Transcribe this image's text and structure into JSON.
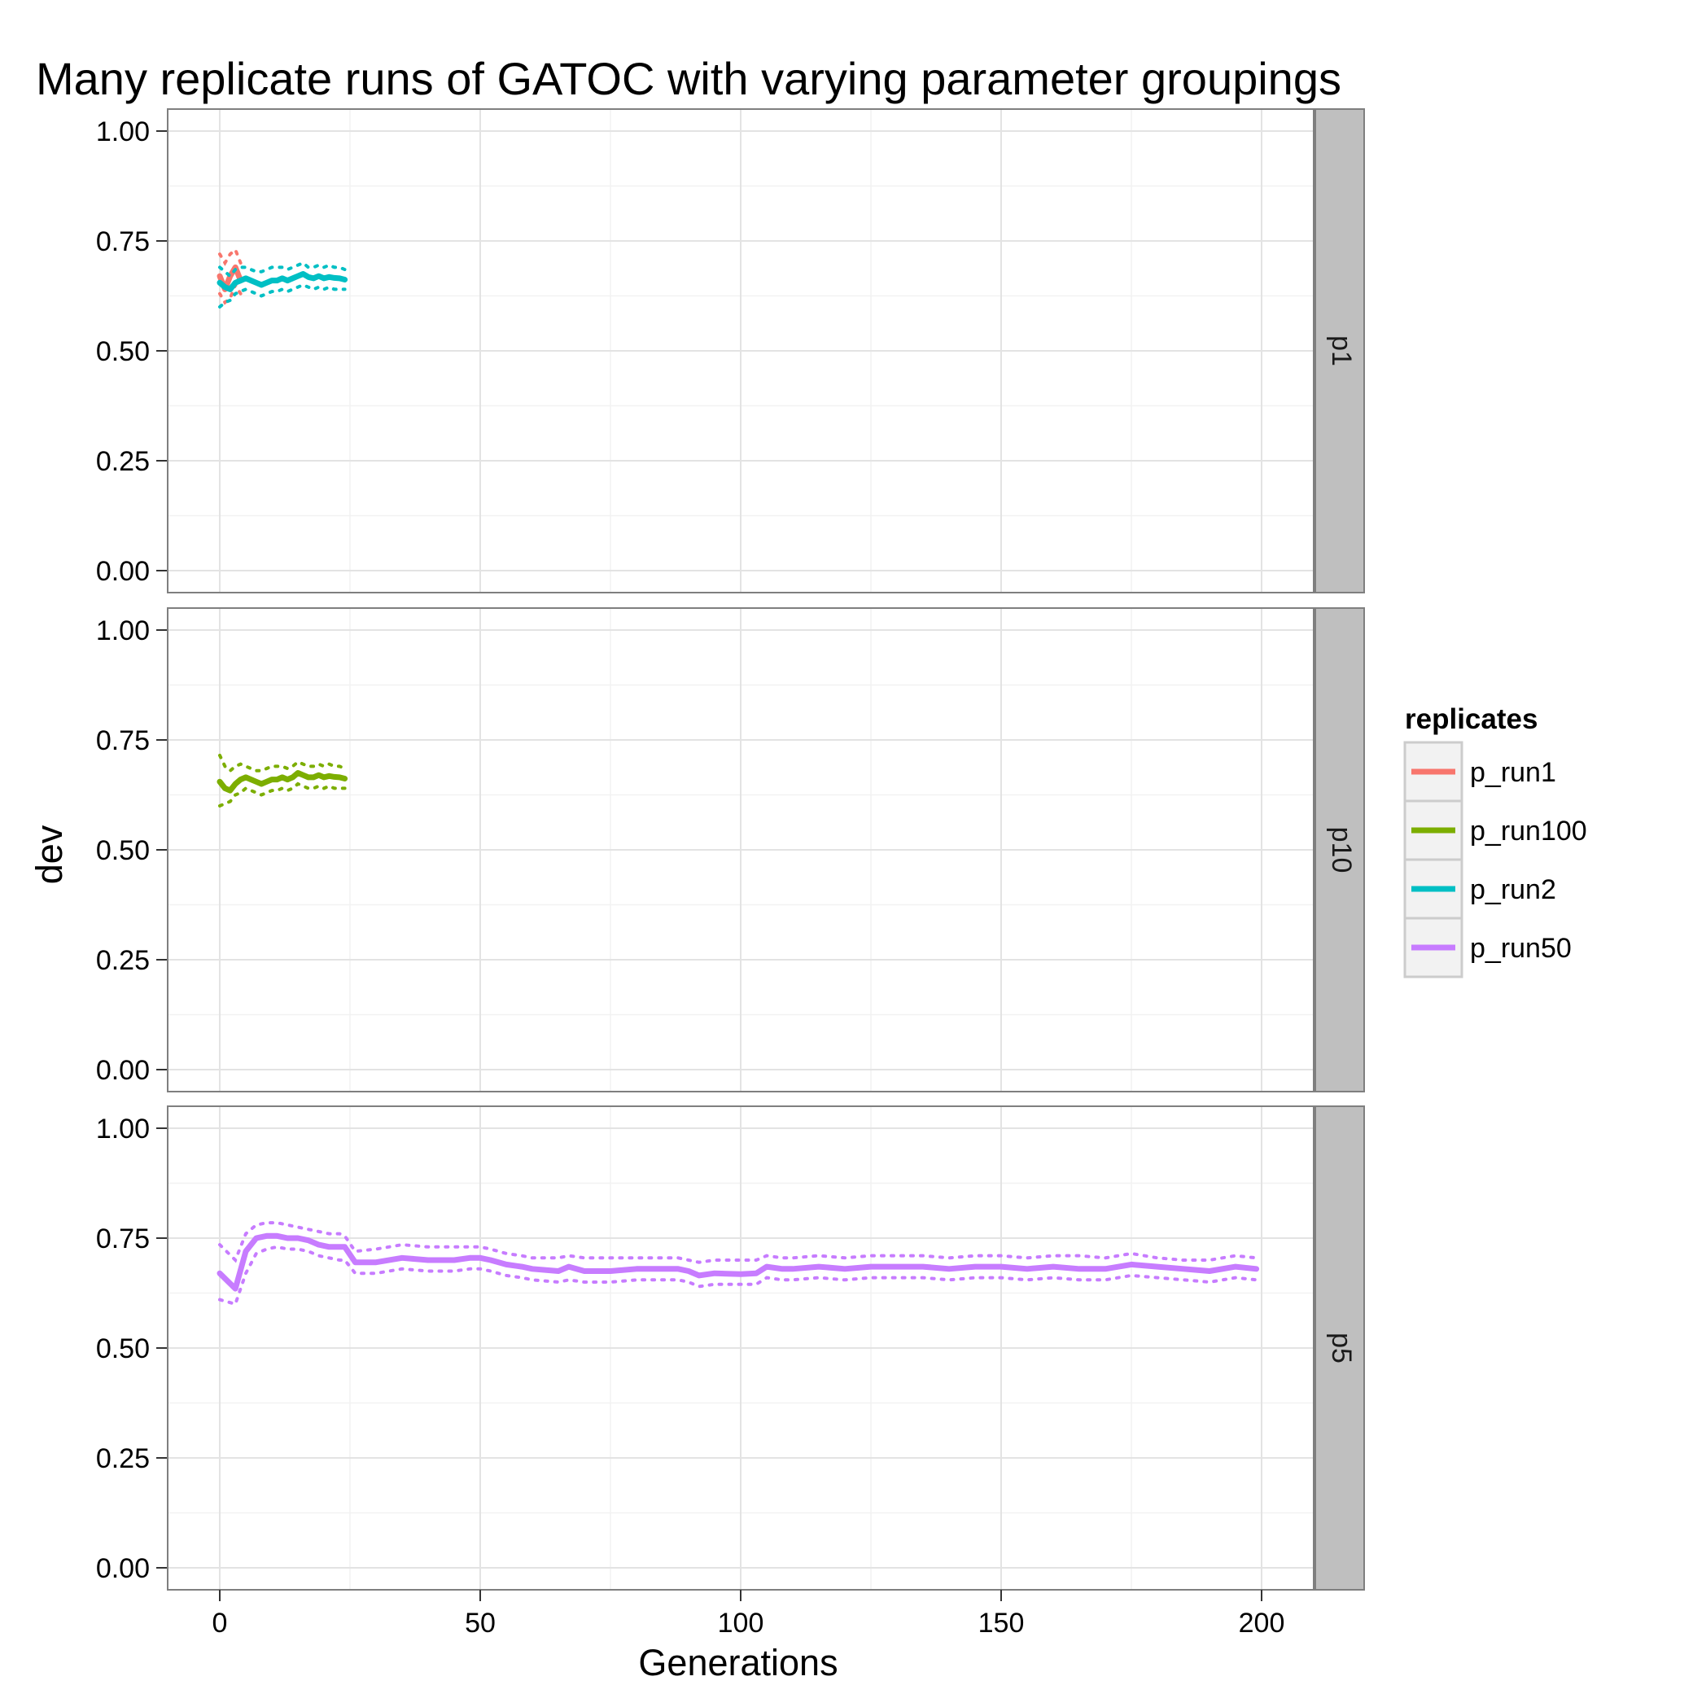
{
  "chart_data": {
    "type": "line",
    "title": "Many replicate runs of GATOC with varying parameter groupings",
    "xlabel": "Generations",
    "ylabel": "dev",
    "xlim": [
      -10,
      210
    ],
    "ylim": [
      -0.05,
      1.05
    ],
    "x_ticks": [
      0,
      50,
      100,
      150,
      200
    ],
    "y_ticks": [
      "0.00",
      "0.25",
      "0.50",
      "0.75",
      "1.00"
    ],
    "grid": true,
    "legend": {
      "title": "replicates",
      "placement": "right",
      "entries": [
        {
          "label": "p_run1",
          "color": "#F8766D"
        },
        {
          "label": "p_run100",
          "color": "#7CAE00"
        },
        {
          "label": "p_run2",
          "color": "#00BFC4"
        },
        {
          "label": "p_run50",
          "color": "#C77CFF"
        }
      ]
    },
    "panels": [
      {
        "strip": "p1",
        "series": [
          {
            "name": "p_run1",
            "color": "#F8766D",
            "x": [
              0,
              1,
              2,
              3,
              4
            ],
            "mean": [
              0.67,
              0.64,
              0.67,
              0.69,
              0.66
            ],
            "upper": [
              0.72,
              0.7,
              0.72,
              0.73,
              0.7
            ],
            "lower": [
              0.63,
              0.61,
              0.62,
              0.65,
              0.63
            ]
          },
          {
            "name": "p_run2",
            "color": "#00BFC4",
            "x": [
              0,
              1,
              2,
              3,
              4,
              5,
              6,
              7,
              8,
              9,
              10,
              11,
              12,
              13,
              14,
              15,
              16,
              17,
              18,
              19,
              20,
              21,
              22,
              23,
              24
            ],
            "mean": [
              0.655,
              0.645,
              0.64,
              0.655,
              0.66,
              0.665,
              0.66,
              0.655,
              0.65,
              0.655,
              0.66,
              0.66,
              0.665,
              0.66,
              0.665,
              0.67,
              0.675,
              0.668,
              0.665,
              0.67,
              0.665,
              0.668,
              0.666,
              0.665,
              0.662
            ],
            "upper": [
              0.69,
              0.68,
              0.67,
              0.685,
              0.69,
              0.69,
              0.685,
              0.68,
              0.68,
              0.685,
              0.69,
              0.69,
              0.69,
              0.685,
              0.69,
              0.695,
              0.7,
              0.69,
              0.69,
              0.695,
              0.69,
              0.695,
              0.69,
              0.69,
              0.685
            ],
            "lower": [
              0.6,
              0.61,
              0.615,
              0.63,
              0.635,
              0.64,
              0.635,
              0.63,
              0.625,
              0.63,
              0.635,
              0.635,
              0.64,
              0.635,
              0.64,
              0.645,
              0.65,
              0.645,
              0.64,
              0.645,
              0.64,
              0.645,
              0.64,
              0.64,
              0.64
            ]
          }
        ]
      },
      {
        "strip": "p10",
        "series": [
          {
            "name": "p_run100",
            "color": "#7CAE00",
            "x": [
              0,
              1,
              2,
              3,
              4,
              5,
              6,
              7,
              8,
              9,
              10,
              11,
              12,
              13,
              14,
              15,
              16,
              17,
              18,
              19,
              20,
              21,
              22,
              23,
              24
            ],
            "mean": [
              0.655,
              0.64,
              0.635,
              0.65,
              0.66,
              0.665,
              0.66,
              0.655,
              0.65,
              0.655,
              0.66,
              0.66,
              0.665,
              0.66,
              0.665,
              0.675,
              0.67,
              0.665,
              0.665,
              0.67,
              0.665,
              0.668,
              0.666,
              0.665,
              0.662
            ],
            "upper": [
              0.715,
              0.69,
              0.68,
              0.69,
              0.695,
              0.69,
              0.685,
              0.68,
              0.68,
              0.685,
              0.69,
              0.69,
              0.69,
              0.685,
              0.69,
              0.7,
              0.695,
              0.69,
              0.69,
              0.695,
              0.69,
              0.695,
              0.69,
              0.69,
              0.685
            ],
            "lower": [
              0.6,
              0.605,
              0.61,
              0.625,
              0.63,
              0.64,
              0.635,
              0.63,
              0.625,
              0.63,
              0.635,
              0.635,
              0.64,
              0.635,
              0.64,
              0.65,
              0.645,
              0.64,
              0.64,
              0.645,
              0.64,
              0.645,
              0.64,
              0.64,
              0.64
            ]
          }
        ]
      },
      {
        "strip": "p5",
        "series": [
          {
            "name": "p_run50",
            "color": "#C77CFF",
            "x": [
              0,
              3,
              5,
              7,
              9,
              11,
              13,
              15,
              17,
              19,
              21,
              23,
              24,
              26,
              30,
              35,
              40,
              45,
              48,
              50,
              52,
              55,
              58,
              60,
              65,
              67,
              70,
              75,
              80,
              85,
              88,
              90,
              92,
              95,
              100,
              103,
              105,
              108,
              110,
              115,
              120,
              125,
              130,
              135,
              140,
              145,
              150,
              155,
              160,
              165,
              170,
              175,
              180,
              185,
              190,
              195,
              199
            ],
            "mean": [
              0.67,
              0.635,
              0.72,
              0.75,
              0.755,
              0.755,
              0.75,
              0.75,
              0.745,
              0.735,
              0.73,
              0.73,
              0.73,
              0.695,
              0.695,
              0.705,
              0.7,
              0.7,
              0.705,
              0.705,
              0.7,
              0.69,
              0.685,
              0.68,
              0.675,
              0.685,
              0.675,
              0.675,
              0.68,
              0.68,
              0.68,
              0.675,
              0.665,
              0.67,
              0.668,
              0.67,
              0.685,
              0.68,
              0.68,
              0.685,
              0.68,
              0.685,
              0.685,
              0.685,
              0.68,
              0.685,
              0.685,
              0.68,
              0.685,
              0.68,
              0.68,
              0.69,
              0.685,
              0.68,
              0.675,
              0.685,
              0.68
            ],
            "upper": [
              0.735,
              0.7,
              0.76,
              0.78,
              0.785,
              0.785,
              0.78,
              0.775,
              0.77,
              0.765,
              0.76,
              0.76,
              0.755,
              0.72,
              0.725,
              0.735,
              0.73,
              0.73,
              0.73,
              0.73,
              0.725,
              0.715,
              0.71,
              0.705,
              0.705,
              0.71,
              0.705,
              0.705,
              0.705,
              0.705,
              0.705,
              0.7,
              0.695,
              0.7,
              0.7,
              0.7,
              0.71,
              0.705,
              0.705,
              0.71,
              0.705,
              0.71,
              0.71,
              0.71,
              0.705,
              0.71,
              0.71,
              0.705,
              0.71,
              0.71,
              0.705,
              0.715,
              0.705,
              0.7,
              0.7,
              0.71,
              0.705
            ],
            "lower": [
              0.61,
              0.6,
              0.67,
              0.715,
              0.725,
              0.73,
              0.725,
              0.725,
              0.72,
              0.71,
              0.705,
              0.7,
              0.7,
              0.67,
              0.67,
              0.68,
              0.675,
              0.675,
              0.68,
              0.68,
              0.675,
              0.665,
              0.66,
              0.655,
              0.65,
              0.655,
              0.65,
              0.65,
              0.655,
              0.655,
              0.655,
              0.65,
              0.64,
              0.645,
              0.645,
              0.645,
              0.66,
              0.655,
              0.655,
              0.66,
              0.655,
              0.66,
              0.66,
              0.66,
              0.655,
              0.66,
              0.66,
              0.655,
              0.66,
              0.655,
              0.655,
              0.665,
              0.66,
              0.655,
              0.65,
              0.66,
              0.655
            ]
          }
        ]
      }
    ]
  }
}
